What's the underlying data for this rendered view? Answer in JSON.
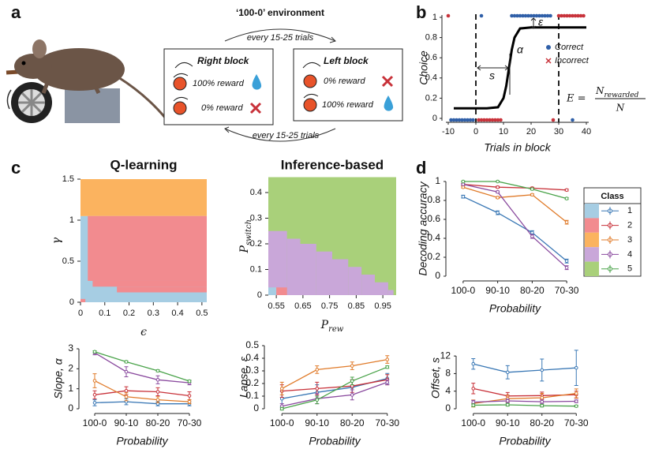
{
  "panel_labels": [
    "a",
    "b",
    "c",
    "d"
  ],
  "diagram": {
    "environment": "‘100-0’ environment",
    "transition_top": "every 15-25 trials",
    "transition_bottom": "every 15-25 trials",
    "right_block": {
      "title": "Right block",
      "rows": [
        "100% reward",
        "0% reward"
      ]
    },
    "left_block": {
      "title": "Left block",
      "rows": [
        "0% reward",
        "100% reward"
      ]
    }
  },
  "chart_data": [
    {
      "type": "scatter",
      "xlabel": "Trials in block",
      "ylabel": "Choice",
      "xlim": [
        -10,
        40
      ],
      "ylim": [
        0,
        1
      ],
      "xticks": [
        -10,
        0,
        10,
        20,
        30,
        40
      ],
      "yticks": [
        0,
        0.2,
        0.4,
        0.6,
        0.8,
        1
      ],
      "block_boundaries": [
        0,
        30
      ],
      "annotations": {
        "lapse": "ε",
        "slope": "α",
        "offset": "s"
      },
      "formula": {
        "lhs": "E =",
        "numerator": "N",
        "numerator_sub": "rewarded",
        "denominator": "N"
      },
      "series": [
        {
          "name": "Correct",
          "color": "#2f5fa8",
          "marker": "dot",
          "x": [
            2,
            13,
            14,
            15,
            16,
            17,
            18,
            19,
            20,
            21,
            22,
            23,
            24,
            25,
            26,
            27,
            -9,
            -8,
            -7,
            -6,
            -5,
            -4,
            -3,
            -2,
            -1,
            35
          ],
          "values": [
            1,
            1,
            1,
            1,
            1,
            1,
            1,
            1,
            1,
            1,
            1,
            1,
            1,
            1,
            1,
            1,
            0,
            0,
            0,
            0,
            0,
            0,
            0,
            0,
            0,
            0
          ]
        },
        {
          "name": "Incorrect",
          "color": "#c8323a",
          "marker": "cross",
          "x": [
            -10,
            30,
            31,
            32,
            33,
            34,
            35,
            36,
            37,
            38,
            39,
            1,
            2,
            3,
            4,
            5,
            6,
            7,
            8,
            9,
            28
          ],
          "values": [
            1,
            1,
            1,
            1,
            1,
            1,
            1,
            1,
            1,
            1,
            1,
            0,
            0,
            0,
            0,
            0,
            0,
            0,
            0,
            0,
            0
          ]
        },
        {
          "color": "#000000",
          "marker": "line",
          "x": [
            -8,
            -4,
            0,
            4,
            8,
            10,
            11,
            12,
            13,
            14,
            16,
            20,
            24,
            28,
            32,
            36,
            40
          ],
          "values": [
            0.1,
            0.1,
            0.1,
            0.1,
            0.11,
            0.2,
            0.32,
            0.5,
            0.68,
            0.8,
            0.89,
            0.9,
            0.9,
            0.9,
            0.9,
            0.9,
            0.9
          ]
        }
      ]
    },
    {
      "type": "heatmap",
      "title": "Q-learning",
      "xlabel": "ϵ",
      "ylabel": "γ",
      "xlim": [
        0,
        0.52
      ],
      "ylim": [
        0,
        1.5
      ],
      "xticks": [
        0,
        0.1,
        0.2,
        0.3,
        0.4,
        0.5
      ],
      "yticks": [
        0,
        0.5,
        1,
        1.5
      ],
      "colors": [
        "#a6cde3",
        "#f28b8f",
        "#fbb35f",
        "#c9a7d9",
        "#a9d07a"
      ],
      "cells": [
        {
          "x": [
            0,
            0.52
          ],
          "y": [
            0,
            1.05
          ],
          "class": 0
        },
        {
          "x": [
            0,
            0.52
          ],
          "y": [
            1.05,
            1.5
          ],
          "class": 2
        },
        {
          "x": [
            0.03,
            0.52
          ],
          "y": [
            0.26,
            1.05
          ],
          "class": 1
        },
        {
          "x": [
            0.05,
            0.52
          ],
          "y": [
            0.19,
            0.26
          ],
          "class": 1
        },
        {
          "x": [
            0.15,
            0.52
          ],
          "y": [
            0.12,
            0.19
          ],
          "class": 1
        },
        {
          "x": [
            0,
            0.02
          ],
          "y": [
            0,
            0.04
          ],
          "class": 1
        }
      ]
    },
    {
      "type": "heatmap",
      "title": "Inference-based",
      "xlabel": "P",
      "xlabel_sub": "rew",
      "ylabel": "P",
      "ylabel_sub": "switch",
      "xlim": [
        0.52,
        1.0
      ],
      "ylim": [
        0,
        0.46
      ],
      "xticks": [
        0.55,
        0.65,
        0.75,
        0.85,
        0.95
      ],
      "yticks": [
        0,
        0.1,
        0.2,
        0.3,
        0.4
      ],
      "colors": [
        "#a6cde3",
        "#f28b8f",
        "#fbb35f",
        "#c9a7d9",
        "#a9d07a"
      ],
      "cells": [
        {
          "x": [
            0.52,
            1.0
          ],
          "y": [
            0,
            0.46
          ],
          "class": 4
        },
        {
          "x": [
            0.52,
            0.59
          ],
          "y": [
            0,
            0.25
          ],
          "class": 3
        },
        {
          "x": [
            0.59,
            0.64
          ],
          "y": [
            0,
            0.22
          ],
          "class": 3
        },
        {
          "x": [
            0.64,
            0.7
          ],
          "y": [
            0,
            0.2
          ],
          "class": 3
        },
        {
          "x": [
            0.7,
            0.76
          ],
          "y": [
            0,
            0.17
          ],
          "class": 3
        },
        {
          "x": [
            0.76,
            0.82
          ],
          "y": [
            0,
            0.14
          ],
          "class": 3
        },
        {
          "x": [
            0.82,
            0.87
          ],
          "y": [
            0,
            0.11
          ],
          "class": 3
        },
        {
          "x": [
            0.87,
            0.92
          ],
          "y": [
            0,
            0.08
          ],
          "class": 3
        },
        {
          "x": [
            0.92,
            0.97
          ],
          "y": [
            0,
            0.05
          ],
          "class": 3
        },
        {
          "x": [
            0.97,
            0.99
          ],
          "y": [
            0,
            0.02
          ],
          "class": 3
        },
        {
          "x": [
            0.52,
            0.55
          ],
          "y": [
            0,
            0.03
          ],
          "class": 0
        },
        {
          "x": [
            0.55,
            0.59
          ],
          "y": [
            0,
            0.03
          ],
          "class": 1
        }
      ]
    },
    {
      "type": "line",
      "xlabel": "Probability",
      "ylabel": "Decoding accuracy",
      "legend_title": "Class",
      "categories": [
        "100-0",
        "90-10",
        "80-20",
        "70-30"
      ],
      "ylim": [
        0,
        1
      ],
      "yticks": [
        0,
        0.2,
        0.4,
        0.6,
        0.8,
        1
      ],
      "series": [
        {
          "name": "1",
          "color": "#3a78b5",
          "swatch": "#a6cde3",
          "values": [
            0.84,
            0.67,
            0.46,
            0.16
          ],
          "errors": [
            0.015,
            0.02,
            0.02,
            0.02
          ]
        },
        {
          "name": "2",
          "color": "#c8323a",
          "swatch": "#f28b8f",
          "values": [
            0.97,
            0.94,
            0.93,
            0.91
          ],
          "errors": [
            0.01,
            0.01,
            0.01,
            0.01
          ]
        },
        {
          "name": "3",
          "color": "#e07b2a",
          "swatch": "#fbb35f",
          "values": [
            0.94,
            0.83,
            0.86,
            0.57
          ],
          "errors": [
            0.01,
            0.01,
            0.01,
            0.02
          ]
        },
        {
          "name": "4",
          "color": "#8a4a9e",
          "swatch": "#c9a7d9",
          "values": [
            0.97,
            0.89,
            0.42,
            0.09
          ],
          "errors": [
            0.01,
            0.01,
            0.02,
            0.02
          ]
        },
        {
          "name": "5",
          "color": "#4aa34a",
          "swatch": "#a9d07a",
          "values": [
            1.0,
            1.0,
            0.92,
            0.82
          ],
          "errors": [
            0.005,
            0.005,
            0.01,
            0.01
          ]
        }
      ]
    },
    {
      "type": "line",
      "xlabel": "Probability",
      "ylabel": "Slope, α",
      "categories": [
        "100-0",
        "90-10",
        "80-20",
        "70-30"
      ],
      "ylim": [
        0,
        3
      ],
      "yticks": [
        0,
        1,
        2,
        3
      ],
      "series": [
        {
          "color": "#3a78b5",
          "values": [
            0.3,
            0.35,
            0.25,
            0.25
          ],
          "errors": [
            0.15,
            0.15,
            0.1,
            0.1
          ]
        },
        {
          "color": "#c8323a",
          "values": [
            0.7,
            0.9,
            0.85,
            0.65
          ],
          "errors": [
            0.2,
            0.2,
            0.2,
            0.2
          ]
        },
        {
          "color": "#e07b2a",
          "values": [
            1.4,
            0.6,
            0.45,
            0.35
          ],
          "errors": [
            0.35,
            0.2,
            0.15,
            0.1
          ]
        },
        {
          "color": "#8a4a9e",
          "values": [
            2.8,
            1.85,
            1.45,
            1.3
          ],
          "errors": [
            0.1,
            0.25,
            0.2,
            0.1
          ]
        },
        {
          "color": "#4aa34a",
          "values": [
            2.85,
            2.35,
            1.9,
            1.38
          ],
          "errors": [
            0.05,
            0.05,
            0.05,
            0.05
          ]
        }
      ]
    },
    {
      "type": "line",
      "xlabel": "Probability",
      "ylabel": "Lapse, ε",
      "categories": [
        "100-0",
        "90-10",
        "80-20",
        "70-30"
      ],
      "ylim": [
        0,
        0.5
      ],
      "yticks": [
        0,
        0.1,
        0.2,
        0.3,
        0.4,
        0.5
      ],
      "series": [
        {
          "color": "#3a78b5",
          "values": [
            0.08,
            0.13,
            0.17,
            0.24
          ],
          "errors": [
            0.06,
            0.06,
            0.06,
            0.04
          ]
        },
        {
          "color": "#c8323a",
          "values": [
            0.14,
            0.16,
            0.18,
            0.23
          ],
          "errors": [
            0.05,
            0.05,
            0.05,
            0.04
          ]
        },
        {
          "color": "#e07b2a",
          "values": [
            0.16,
            0.31,
            0.34,
            0.39
          ],
          "errors": [
            0.05,
            0.03,
            0.03,
            0.03
          ]
        },
        {
          "color": "#8a4a9e",
          "values": [
            0.02,
            0.08,
            0.11,
            0.21
          ],
          "errors": [
            0.02,
            0.04,
            0.04,
            0.02
          ]
        },
        {
          "color": "#4aa34a",
          "values": [
            0.0,
            0.07,
            0.22,
            0.33
          ],
          "errors": [
            0.01,
            0.03,
            0.03,
            0.01
          ]
        }
      ]
    },
    {
      "type": "line",
      "xlabel": "Probability",
      "ylabel": "Offset, s",
      "categories": [
        "100-0",
        "90-10",
        "80-20",
        "70-30"
      ],
      "ylim": [
        0,
        14
      ],
      "yticks": [
        0,
        4,
        8,
        12
      ],
      "series": [
        {
          "color": "#3a78b5",
          "values": [
            10.2,
            8.3,
            8.8,
            9.3
          ],
          "errors": [
            1.2,
            1.5,
            2.5,
            4
          ]
        },
        {
          "color": "#c8323a",
          "values": [
            4.6,
            2.9,
            3.0,
            3.2
          ],
          "errors": [
            1.2,
            0.8,
            0.8,
            0.8
          ]
        },
        {
          "color": "#e07b2a",
          "values": [
            1.2,
            2.3,
            2.5,
            3.5
          ],
          "errors": [
            0.8,
            0.8,
            1.0,
            1.0
          ]
        },
        {
          "color": "#8a4a9e",
          "values": [
            1.5,
            1.8,
            1.6,
            1.7
          ],
          "errors": [
            0.4,
            0.4,
            0.4,
            0.3
          ]
        },
        {
          "color": "#4aa34a",
          "values": [
            0.8,
            0.9,
            0.7,
            0.6
          ],
          "errors": [
            0.3,
            0.3,
            0.3,
            0.2
          ]
        }
      ]
    }
  ]
}
